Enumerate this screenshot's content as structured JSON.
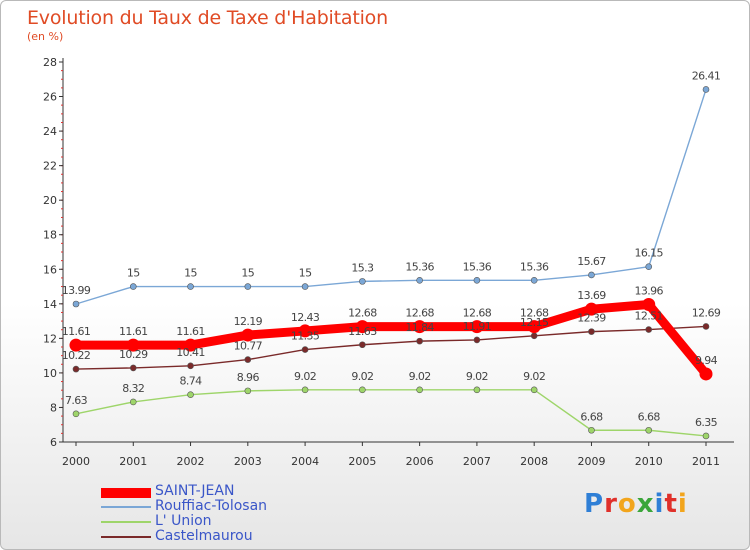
{
  "header": {
    "title": "Evolution du Taux de Taxe d'Habitation",
    "subtitle": "(en %)"
  },
  "chart_data": {
    "type": "line",
    "title": "Evolution du Taux de Taxe d'Habitation",
    "ylabel": "(en %)",
    "xlabel": "",
    "x": [
      "2000",
      "2001",
      "2002",
      "2003",
      "2004",
      "2005",
      "2006",
      "2007",
      "2008",
      "2009",
      "2010",
      "2011"
    ],
    "ylim": [
      6,
      28
    ],
    "yticks": [
      6,
      8,
      10,
      12,
      14,
      16,
      18,
      20,
      22,
      24,
      26,
      28
    ],
    "grid": false,
    "legend": "bottom-left",
    "series": [
      {
        "name": "SAINT-JEAN",
        "color": "#ff0000",
        "values": [
          11.61,
          11.61,
          11.61,
          12.19,
          12.43,
          12.68,
          12.68,
          12.68,
          12.68,
          13.69,
          13.96,
          9.94
        ],
        "labels": [
          "11.61",
          "11.61",
          "11.61",
          "12.19",
          "12.43",
          "12.68",
          "12.68",
          "12.68",
          "12.68",
          "13.69",
          "13.96",
          "9.94"
        ]
      },
      {
        "name": "Rouffiac-Tolosan",
        "color": "#7ba7d6",
        "values": [
          13.99,
          15,
          15,
          15,
          15,
          15.3,
          15.36,
          15.36,
          15.36,
          15.67,
          16.15,
          26.41
        ],
        "labels": [
          "13.99",
          "15",
          "15",
          "15",
          "15",
          "15.3",
          "15.36",
          "15.36",
          "15.36",
          "15.67",
          "16.15",
          "26.41"
        ]
      },
      {
        "name": "L' Union",
        "color": "#9ed56a",
        "values": [
          7.63,
          8.32,
          8.74,
          8.96,
          9.02,
          9.02,
          9.02,
          9.02,
          9.02,
          6.68,
          6.68,
          6.35
        ],
        "labels": [
          "7.63",
          "8.32",
          "8.74",
          "8.96",
          "9.02",
          "9.02",
          "9.02",
          "9.02",
          "9.02",
          "6.68",
          "6.68",
          "6.35"
        ]
      },
      {
        "name": "Castelmaurou",
        "color": "#7a2a2a",
        "values": [
          10.22,
          10.29,
          10.41,
          10.77,
          11.35,
          11.63,
          11.84,
          11.91,
          12.15,
          12.39,
          12.51,
          12.69
        ],
        "labels": [
          "10.22",
          "10.29",
          "10.41",
          "10.77",
          "11.35",
          "11.63",
          "11.84",
          "11.91",
          "12.15",
          "12.39",
          "12.51",
          "12.69"
        ]
      }
    ]
  },
  "legend": {
    "items": [
      {
        "label": "SAINT-JEAN",
        "color": "#ff0000"
      },
      {
        "label": "Rouffiac-Tolosan",
        "color": "#7ba7d6"
      },
      {
        "label": "L' Union",
        "color": "#9ed56a"
      },
      {
        "label": "Castelmaurou",
        "color": "#7a2a2a"
      }
    ]
  },
  "logo": {
    "letters": [
      "P",
      "r",
      "o",
      "x",
      "i",
      "t",
      "i"
    ],
    "colors": [
      "#2f7fd6",
      "#e0302a",
      "#f2a51c",
      "#3ba63b",
      "#2f7fd6",
      "#e0302a",
      "#f2a51c"
    ]
  }
}
